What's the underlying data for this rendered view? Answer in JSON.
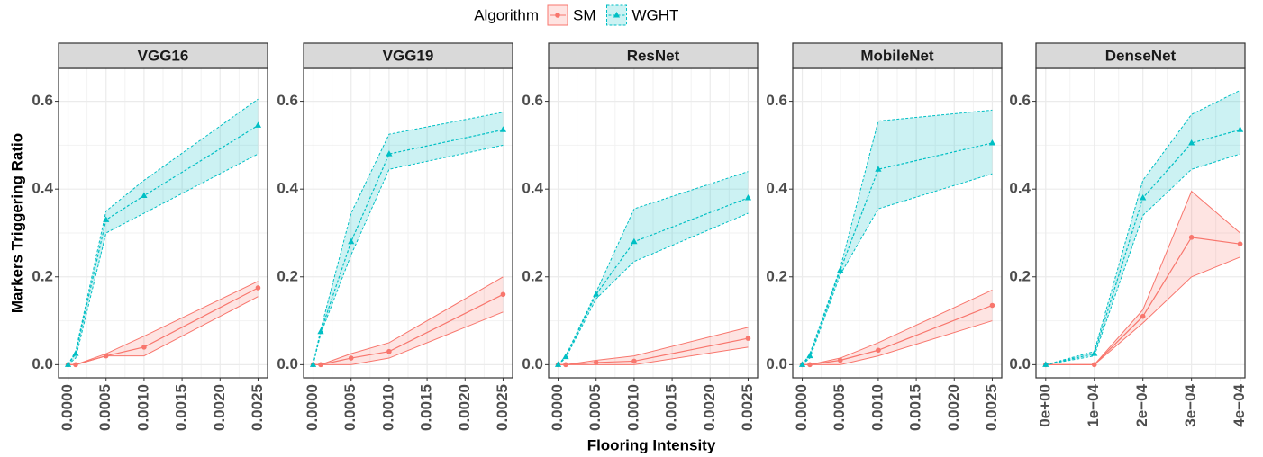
{
  "legend_title": "Algorithm",
  "x_label": "Flooring Intensity",
  "y_label": "Markers Triggering Ratio",
  "chart_data": [
    {
      "type": "line",
      "title": "VGG16",
      "x": [
        0,
        0.0001,
        0.0005,
        0.001,
        0.0025
      ],
      "xlim": [
        -0.000125,
        0.002625
      ],
      "ylim": [
        -0.03,
        0.675
      ],
      "xticks": [
        {
          "value": 0,
          "label": "0.0000"
        },
        {
          "value": 0.0005,
          "label": "0.0005"
        },
        {
          "value": 0.001,
          "label": "0.0010"
        },
        {
          "value": 0.0015,
          "label": "0.0015"
        },
        {
          "value": 0.002,
          "label": "0.0020"
        },
        {
          "value": 0.0025,
          "label": "0.0025"
        }
      ],
      "yticks": [
        {
          "value": 0,
          "label": "0.0"
        },
        0.2,
        0.4,
        0.6
      ],
      "grid": true,
      "series": [
        {
          "name": "SM",
          "color": "#f8766d",
          "linestyle": "solid",
          "marker": "circle",
          "values": [
            0,
            0,
            0.02,
            0.04,
            0.175
          ],
          "lower": [
            0,
            0,
            0.02,
            0.02,
            0.155
          ],
          "upper": [
            0,
            0,
            0.025,
            0.065,
            0.19
          ]
        },
        {
          "name": "WGHT",
          "color": "#00bfc4",
          "linestyle": "dashed",
          "marker": "triangle",
          "values": [
            0,
            0.025,
            0.33,
            0.385,
            0.545
          ],
          "lower": [
            0,
            0.015,
            0.3,
            0.345,
            0.48
          ],
          "upper": [
            0,
            0.03,
            0.35,
            0.42,
            0.605
          ]
        }
      ]
    },
    {
      "type": "line",
      "title": "VGG19",
      "x": [
        0,
        0.0001,
        0.0005,
        0.001,
        0.0025
      ],
      "xlim": [
        -0.000125,
        0.002625
      ],
      "ylim": [
        -0.03,
        0.675
      ],
      "xticks": [
        {
          "value": 0,
          "label": "0.0000"
        },
        {
          "value": 0.0005,
          "label": "0.0005"
        },
        {
          "value": 0.001,
          "label": "0.0010"
        },
        {
          "value": 0.0015,
          "label": "0.0015"
        },
        {
          "value": 0.002,
          "label": "0.0020"
        },
        {
          "value": 0.0025,
          "label": "0.0025"
        }
      ],
      "yticks": [
        {
          "value": 0,
          "label": "0.0"
        },
        0.2,
        0.4,
        0.6
      ],
      "grid": true,
      "series": [
        {
          "name": "SM",
          "color": "#f8766d",
          "linestyle": "solid",
          "marker": "circle",
          "values": [
            0,
            0,
            0.015,
            0.03,
            0.16
          ],
          "lower": [
            0,
            0,
            0,
            0.015,
            0.12
          ],
          "upper": [
            0,
            0,
            0.025,
            0.05,
            0.2
          ]
        },
        {
          "name": "WGHT",
          "color": "#00bfc4",
          "linestyle": "dashed",
          "marker": "triangle",
          "values": [
            0,
            0.075,
            0.28,
            0.48,
            0.535
          ],
          "lower": [
            0,
            0.07,
            0.25,
            0.445,
            0.5
          ],
          "upper": [
            0,
            0.08,
            0.345,
            0.525,
            0.575
          ]
        }
      ]
    },
    {
      "type": "line",
      "title": "ResNet",
      "x": [
        0,
        0.0001,
        0.0005,
        0.001,
        0.0025
      ],
      "xlim": [
        -0.000125,
        0.002625
      ],
      "ylim": [
        -0.03,
        0.675
      ],
      "xticks": [
        {
          "value": 0,
          "label": "0.0000"
        },
        {
          "value": 0.0005,
          "label": "0.0005"
        },
        {
          "value": 0.001,
          "label": "0.0010"
        },
        {
          "value": 0.0015,
          "label": "0.0015"
        },
        {
          "value": 0.002,
          "label": "0.0020"
        },
        {
          "value": 0.0025,
          "label": "0.0025"
        }
      ],
      "yticks": [
        {
          "value": 0,
          "label": "0.0"
        },
        0.2,
        0.4,
        0.6
      ],
      "grid": true,
      "series": [
        {
          "name": "SM",
          "color": "#f8766d",
          "linestyle": "solid",
          "marker": "circle",
          "values": [
            0,
            0,
            0.005,
            0.008,
            0.06
          ],
          "lower": [
            0,
            0,
            0,
            0,
            0.04
          ],
          "upper": [
            0,
            0,
            0.01,
            0.02,
            0.085
          ]
        },
        {
          "name": "WGHT",
          "color": "#00bfc4",
          "linestyle": "dashed",
          "marker": "triangle",
          "values": [
            0,
            0.018,
            0.16,
            0.28,
            0.38
          ],
          "lower": [
            0,
            0.015,
            0.15,
            0.235,
            0.345
          ],
          "upper": [
            0,
            0.02,
            0.165,
            0.355,
            0.44
          ]
        }
      ]
    },
    {
      "type": "line",
      "title": "MobileNet",
      "x": [
        0,
        0.0001,
        0.0005,
        0.001,
        0.0025
      ],
      "xlim": [
        -0.000125,
        0.002625
      ],
      "ylim": [
        -0.03,
        0.675
      ],
      "xticks": [
        {
          "value": 0,
          "label": "0.0000"
        },
        {
          "value": 0.0005,
          "label": "0.0005"
        },
        {
          "value": 0.001,
          "label": "0.0010"
        },
        {
          "value": 0.0015,
          "label": "0.0015"
        },
        {
          "value": 0.002,
          "label": "0.0020"
        },
        {
          "value": 0.0025,
          "label": "0.0025"
        }
      ],
      "yticks": [
        {
          "value": 0,
          "label": "0.0"
        },
        0.2,
        0.4,
        0.6
      ],
      "grid": true,
      "series": [
        {
          "name": "SM",
          "color": "#f8766d",
          "linestyle": "solid",
          "marker": "circle",
          "values": [
            0,
            0,
            0.01,
            0.033,
            0.135
          ],
          "lower": [
            0,
            0,
            0,
            0.02,
            0.1
          ],
          "upper": [
            0,
            0,
            0.015,
            0.05,
            0.17
          ]
        },
        {
          "name": "WGHT",
          "color": "#00bfc4",
          "linestyle": "dashed",
          "marker": "triangle",
          "values": [
            0,
            0.02,
            0.215,
            0.445,
            0.505
          ],
          "lower": [
            0,
            0.015,
            0.205,
            0.355,
            0.435
          ],
          "upper": [
            0,
            0.025,
            0.22,
            0.555,
            0.58
          ]
        }
      ]
    },
    {
      "type": "line",
      "title": "DenseNet",
      "x": [
        0,
        0.0001,
        0.0002,
        0.0003,
        0.0004
      ],
      "xlim": [
        -2e-05,
        0.00041
      ],
      "ylim": [
        -0.03,
        0.675
      ],
      "xticks": [
        {
          "value": 0,
          "label": "0e+00"
        },
        {
          "value": 0.0001,
          "label": "1e−04"
        },
        {
          "value": 0.0002,
          "label": "2e−04"
        },
        {
          "value": 0.0003,
          "label": "3e−04"
        },
        {
          "value": 0.0004,
          "label": "4e−04"
        }
      ],
      "yticks": [
        {
          "value": 0,
          "label": "0.0"
        },
        0.2,
        0.4,
        0.6
      ],
      "grid": true,
      "series": [
        {
          "name": "SM",
          "color": "#f8766d",
          "linestyle": "solid",
          "marker": "circle",
          "values": [
            0,
            0,
            0.11,
            0.29,
            0.275
          ],
          "lower": [
            0,
            0,
            0.095,
            0.2,
            0.245
          ],
          "upper": [
            0,
            0,
            0.125,
            0.395,
            0.3
          ]
        },
        {
          "name": "WGHT",
          "color": "#00bfc4",
          "linestyle": "dashed",
          "marker": "triangle",
          "values": [
            0,
            0.025,
            0.38,
            0.505,
            0.535
          ],
          "lower": [
            0,
            0.02,
            0.34,
            0.445,
            0.48
          ],
          "upper": [
            0,
            0.03,
            0.42,
            0.57,
            0.625
          ]
        }
      ]
    }
  ]
}
